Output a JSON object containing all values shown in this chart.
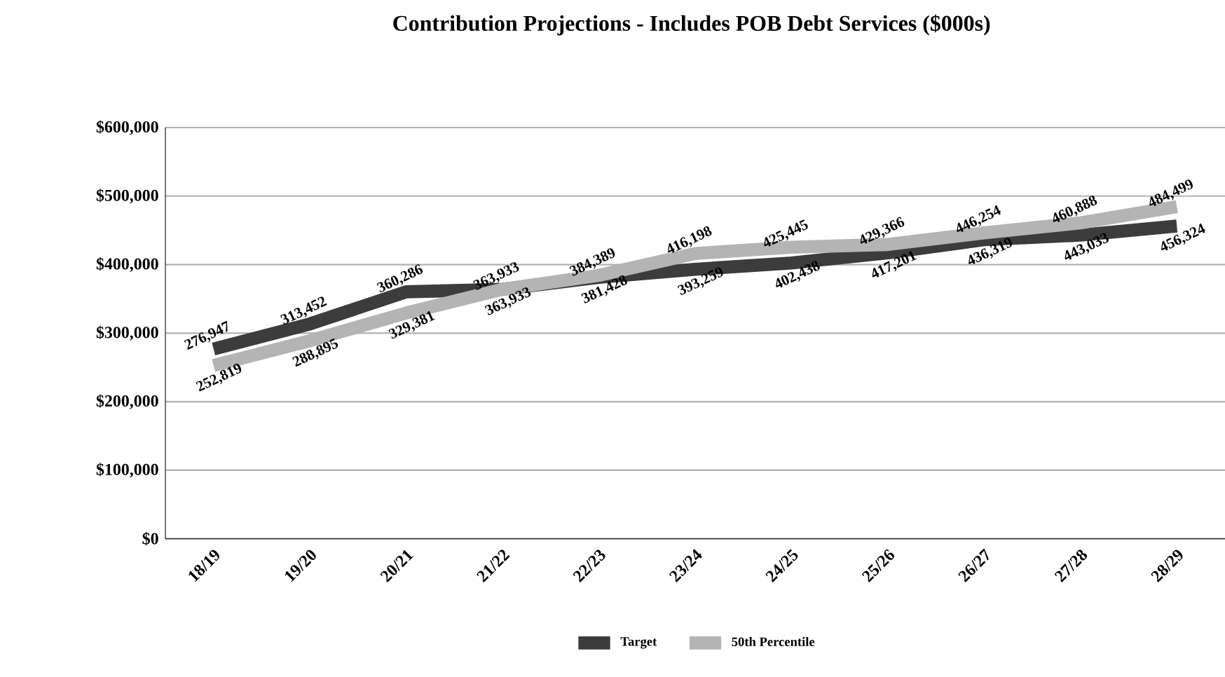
{
  "chart_data": {
    "type": "line",
    "title": "Contribution Projections - Includes POB Debt Services ($000s)",
    "categories": [
      "18/19",
      "19/20",
      "20/21",
      "21/22",
      "22/23",
      "23/24",
      "24/25",
      "25/26",
      "26/27",
      "27/28",
      "28/29"
    ],
    "series": [
      {
        "name": "Target",
        "color": "#3c3c3c",
        "values": [
          276947,
          313452,
          360286,
          363933,
          381428,
          393259,
          402438,
          417201,
          436319,
          443033,
          456324
        ],
        "value_labels": [
          "276,947",
          "313,452",
          "360,286",
          "363,933",
          "381,428",
          "393,259",
          "402,438",
          "417,201",
          "436,319",
          "443,033",
          "456,324"
        ]
      },
      {
        "name": "50th Percentile",
        "color": "#b4b4b4",
        "values": [
          252819,
          288895,
          329381,
          363933,
          384389,
          416198,
          425445,
          429366,
          446254,
          460888,
          484499
        ],
        "value_labels": [
          "252,819",
          "288,895",
          "329,381",
          "363,933",
          "384,389",
          "416,198",
          "425,445",
          "429,366",
          "446,254",
          "460,888",
          "484,499"
        ]
      }
    ],
    "ylim": [
      0,
      600000
    ],
    "yticks": [
      {
        "value": 0,
        "label": "$0"
      },
      {
        "value": 100000,
        "label": "$100,000"
      },
      {
        "value": 200000,
        "label": "$200,000"
      },
      {
        "value": 300000,
        "label": "$300,000"
      },
      {
        "value": 400000,
        "label": "$400,000"
      },
      {
        "value": 500000,
        "label": "$500,000"
      },
      {
        "value": 600000,
        "label": "$600,000"
      }
    ],
    "grid": "y",
    "legend": "bottom",
    "marker": "none",
    "line_style": "solid"
  }
}
